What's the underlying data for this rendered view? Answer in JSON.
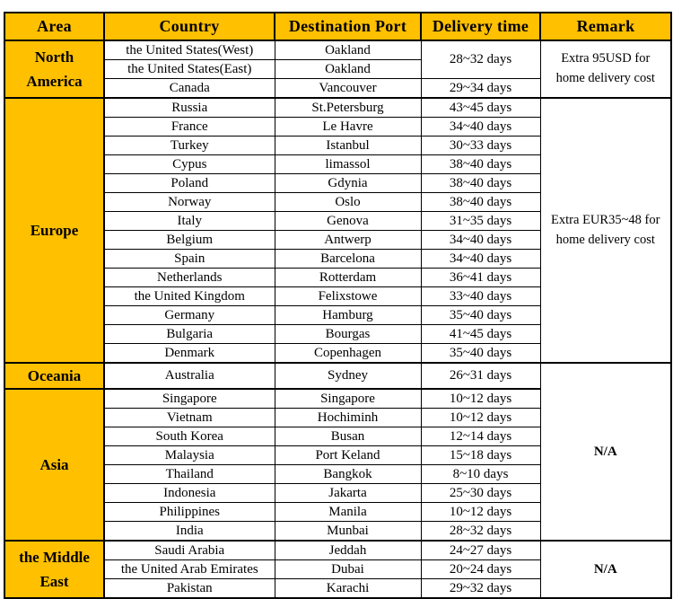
{
  "table": {
    "headers": [
      "Area",
      "Country",
      "Destination Port",
      "Delivery time",
      "Remark"
    ],
    "colors": {
      "header_bg": "#FFC000",
      "area_bg": "#FFC000",
      "border": "#000000",
      "text": "#000000",
      "row_bg": "#FFFFFF"
    },
    "sections": [
      {
        "area": "North America",
        "remark": "Extra 95USD for home delivery cost",
        "rows": [
          {
            "country": "the United States(West)",
            "port": "Oakland",
            "delivery": "28~32 days",
            "delivery_rowspan": 2
          },
          {
            "country": "the United States(East)",
            "port": "Oakland",
            "delivery": null
          },
          {
            "country": "Canada",
            "port": "Vancouver",
            "delivery": "29~34 days"
          }
        ]
      },
      {
        "area": "Europe",
        "remark": "Extra EUR35~48 for home delivery cost",
        "rows": [
          {
            "country": "Russia",
            "port": "St.Petersburg",
            "delivery": "43~45 days"
          },
          {
            "country": "France",
            "port": "Le Havre",
            "delivery": "34~40 days"
          },
          {
            "country": "Turkey",
            "port": "Istanbul",
            "delivery": "30~33 days"
          },
          {
            "country": "Cypus",
            "port": "limassol",
            "delivery": "38~40 days"
          },
          {
            "country": "Poland",
            "port": "Gdynia",
            "delivery": "38~40 days"
          },
          {
            "country": "Norway",
            "port": "Oslo",
            "delivery": "38~40 days"
          },
          {
            "country": "Italy",
            "port": "Genova",
            "delivery": "31~35 days"
          },
          {
            "country": "Belgium",
            "port": "Antwerp",
            "delivery": "34~40 days"
          },
          {
            "country": "Spain",
            "port": "Barcelona",
            "delivery": "34~40 days"
          },
          {
            "country": "Netherlands",
            "port": "Rotterdam",
            "delivery": "36~41 days"
          },
          {
            "country": "the United Kingdom",
            "port": "Felixstowe",
            "delivery": "33~40 days"
          },
          {
            "country": "Germany",
            "port": "Hamburg",
            "delivery": "35~40 days"
          },
          {
            "country": "Bulgaria",
            "port": "Bourgas",
            "delivery": "41~45 days"
          },
          {
            "country": "Denmark",
            "port": "Copenhagen",
            "delivery": "35~40 days"
          }
        ]
      },
      {
        "area": "Oceania",
        "remark": "N/A",
        "remark_rowspan": 9,
        "rows": [
          {
            "country": "Australia",
            "port": "Sydney",
            "delivery": "26~31 days"
          }
        ]
      },
      {
        "area": "Asia",
        "remark": null,
        "rows": [
          {
            "country": "Singapore",
            "port": "Singapore",
            "delivery": "10~12 days"
          },
          {
            "country": "Vietnam",
            "port": "Hochiminh",
            "delivery": "10~12 days"
          },
          {
            "country": "South Korea",
            "port": "Busan",
            "delivery": "12~14 days"
          },
          {
            "country": "Malaysia",
            "port": "Port Keland",
            "delivery": "15~18 days"
          },
          {
            "country": "Thailand",
            "port": "Bangkok",
            "delivery": "8~10 days"
          },
          {
            "country": "Indonesia",
            "port": "Jakarta",
            "delivery": "25~30 days"
          },
          {
            "country": "Philippines",
            "port": "Manila",
            "delivery": "10~12 days"
          },
          {
            "country": "India",
            "port": "Munbai",
            "delivery": "28~32 days"
          }
        ]
      },
      {
        "area": "the Middle East",
        "remark": "N/A",
        "rows": [
          {
            "country": "Saudi Arabia",
            "port": "Jeddah",
            "delivery": "24~27 days"
          },
          {
            "country": "the United Arab Emirates",
            "port": "Dubai",
            "delivery": "20~24 days"
          },
          {
            "country": "Pakistan",
            "port": "Karachi",
            "delivery": "29~32 days"
          }
        ]
      }
    ]
  }
}
